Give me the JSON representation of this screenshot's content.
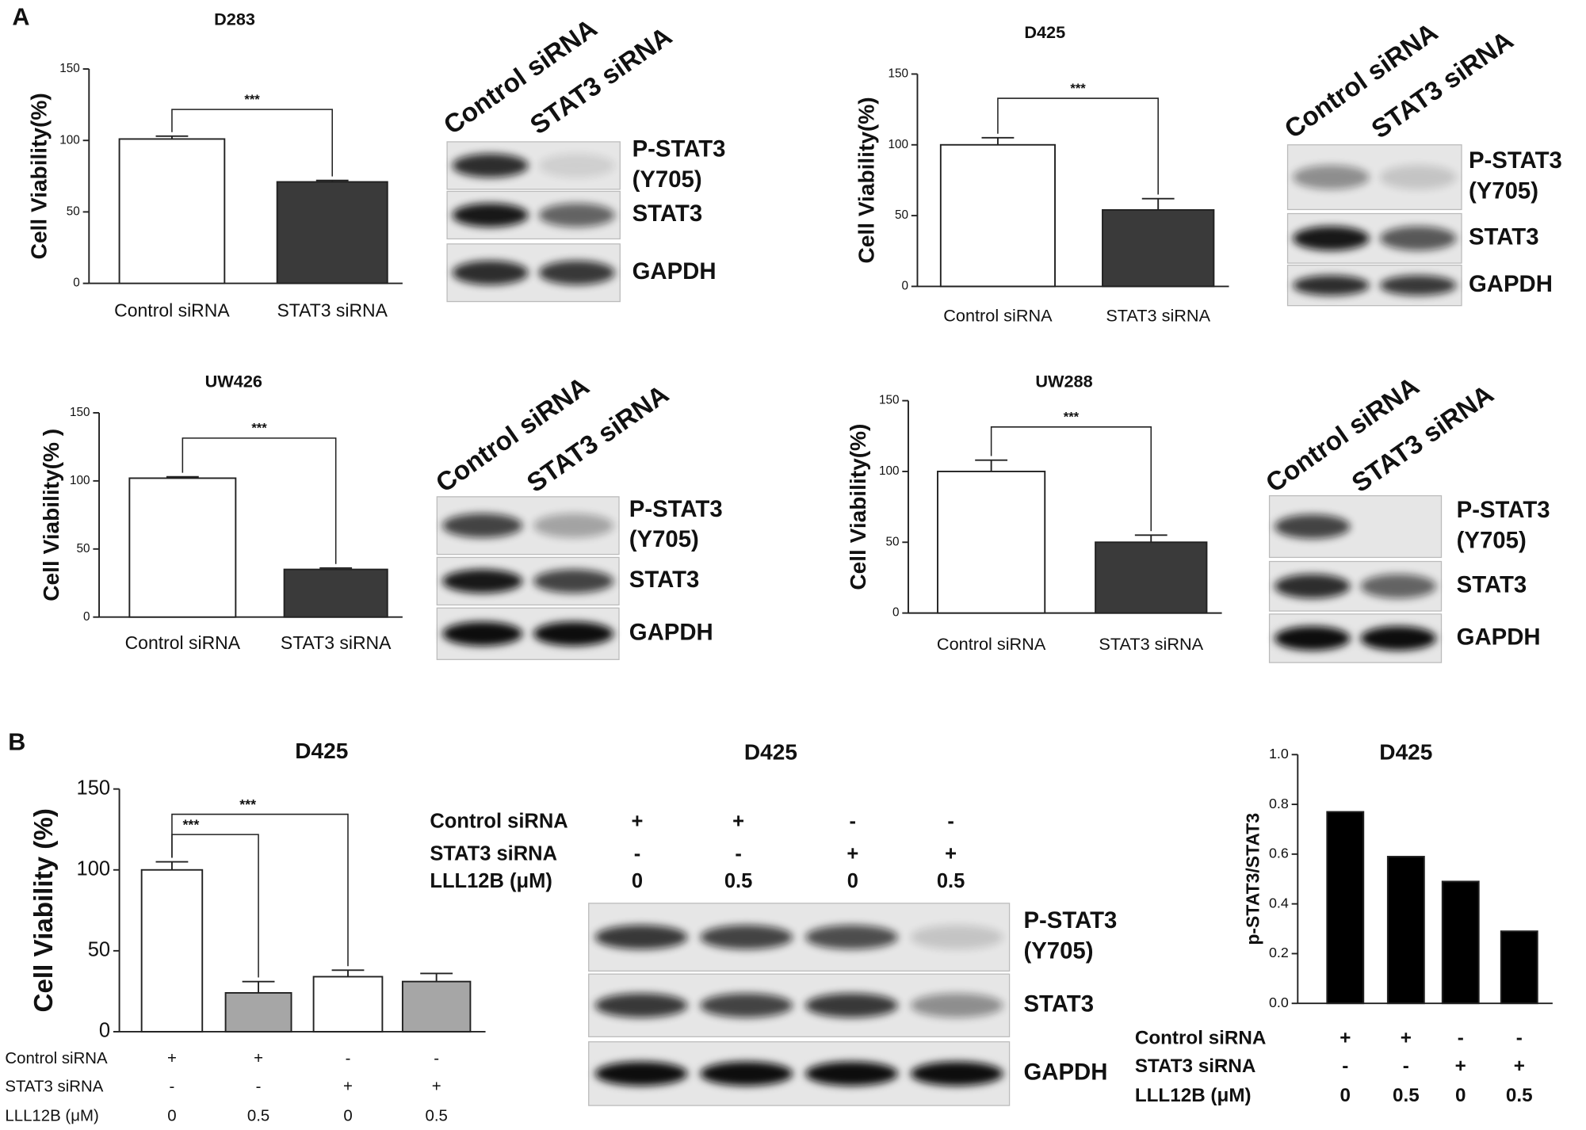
{
  "panel_labels": [
    "A",
    "B"
  ],
  "chart_data": [
    {
      "type": "bar",
      "title": "D283",
      "ylabel": "Cell Viability(%)",
      "categories": [
        "Control siRNA",
        "STAT3 siRNA"
      ],
      "values": [
        101,
        71
      ],
      "errors": [
        2,
        1
      ],
      "colors": [
        "#ffffff",
        "#3a3a3a"
      ],
      "ylim": [
        0,
        150
      ],
      "yticks": [
        0,
        50,
        100,
        150
      ],
      "comparisons": [
        {
          "label": "***",
          "bars": [
            0,
            1
          ]
        }
      ]
    },
    {
      "type": "bar",
      "title": "D425",
      "ylabel": "Cell Viability(%)",
      "categories": [
        "Control siRNA",
        "STAT3 siRNA"
      ],
      "values": [
        100,
        54
      ],
      "errors": [
        5,
        8
      ],
      "colors": [
        "#ffffff",
        "#3a3a3a"
      ],
      "ylim": [
        0,
        150
      ],
      "yticks": [
        0,
        50,
        100,
        150
      ],
      "comparisons": [
        {
          "label": "***",
          "bars": [
            0,
            1
          ]
        }
      ]
    },
    {
      "type": "bar",
      "title": "UW426",
      "ylabel": "Cell Viability(% )",
      "categories": [
        "Control siRNA",
        "STAT3 siRNA"
      ],
      "values": [
        102,
        35
      ],
      "errors": [
        1,
        1
      ],
      "colors": [
        "#ffffff",
        "#3a3a3a"
      ],
      "ylim": [
        0,
        150
      ],
      "yticks": [
        0,
        50,
        100,
        150
      ],
      "comparisons": [
        {
          "label": "***",
          "bars": [
            0,
            1
          ]
        }
      ]
    },
    {
      "type": "bar",
      "title": "UW288",
      "ylabel": "Cell Viability(%)",
      "categories": [
        "Control siRNA",
        "STAT3 siRNA"
      ],
      "values": [
        100,
        50
      ],
      "errors": [
        8,
        5
      ],
      "colors": [
        "#ffffff",
        "#3a3a3a"
      ],
      "ylim": [
        0,
        150
      ],
      "yticks": [
        0,
        50,
        100,
        150
      ],
      "comparisons": [
        {
          "label": "***",
          "bars": [
            0,
            1
          ]
        }
      ]
    },
    {
      "type": "bar",
      "title": "D425",
      "ylabel": "Cell Viability (%)",
      "values": [
        100,
        24,
        34,
        31
      ],
      "errors": [
        5,
        7,
        4,
        5
      ],
      "colors": [
        "#ffffff",
        "#a6a6a6",
        "#ffffff",
        "#a6a6a6"
      ],
      "ylim": [
        0,
        150
      ],
      "yticks": [
        0,
        50,
        100,
        150
      ],
      "comparisons": [
        {
          "label": "***",
          "bars": [
            0,
            1
          ]
        },
        {
          "label": "***",
          "bars": [
            0,
            2
          ]
        }
      ],
      "conditions": [
        {
          "name": "Control siRNA",
          "values": [
            "+",
            "+",
            "-",
            "-"
          ]
        },
        {
          "name": "STAT3 siRNA",
          "values": [
            "-",
            "-",
            "+",
            "+"
          ]
        },
        {
          "name": "LLL12B (μM)",
          "values": [
            "0",
            "0.5",
            "0",
            "0.5"
          ]
        }
      ]
    },
    {
      "type": "bar",
      "title": "D425",
      "ylabel": "p-STAT3/STAT3",
      "values": [
        0.77,
        0.59,
        0.49,
        0.29
      ],
      "colors": [
        "#000000",
        "#000000",
        "#000000",
        "#000000"
      ],
      "ylim": [
        0,
        1
      ],
      "yticks": [
        {
          "value": 0,
          "label": "0.0"
        },
        0.2,
        0.4,
        0.6,
        0.8,
        {
          "value": 1,
          "label": "1.0"
        }
      ],
      "conditions": [
        {
          "name": "Control siRNA",
          "values": [
            "+",
            "+",
            "-",
            "-"
          ]
        },
        {
          "name": "STAT3 siRNA",
          "values": [
            "-",
            "-",
            "+",
            "+"
          ]
        },
        {
          "name": "LLL12B (μM)",
          "values": [
            "0",
            "0.5",
            "0",
            "0.5"
          ]
        }
      ]
    }
  ],
  "blots": [
    {
      "lanes": [
        "Control siRNA",
        "STAT3 siRNA"
      ],
      "rows": [
        [
          "P-STAT3",
          "(Y705)"
        ],
        [
          "STAT3"
        ],
        [
          "GAPDH"
        ]
      ]
    },
    {
      "lanes": [
        "Control siRNA",
        "STAT3 siRNA"
      ],
      "rows": [
        [
          "P-STAT3",
          "(Y705)"
        ],
        [
          "STAT3"
        ],
        [
          "GAPDH"
        ]
      ]
    },
    {
      "lanes": [
        "Control siRNA",
        "STAT3 siRNA"
      ],
      "rows": [
        [
          "P-STAT3",
          "(Y705)"
        ],
        [
          "STAT3"
        ],
        [
          "GAPDH"
        ]
      ]
    },
    {
      "lanes": [
        "Control siRNA",
        "STAT3 siRNA"
      ],
      "rows": [
        [
          "P-STAT3",
          "(Y705)"
        ],
        [
          "STAT3"
        ],
        [
          "GAPDH"
        ]
      ]
    },
    {
      "title": "D425",
      "conditions": [
        {
          "name": "Control siRNA",
          "values": [
            "+",
            "+",
            "-",
            "-"
          ]
        },
        {
          "name": "STAT3 siRNA",
          "values": [
            "-",
            "-",
            "+",
            "+"
          ]
        },
        {
          "name": "LLL12B (μM)",
          "values": [
            "0",
            "0.5",
            "0",
            "0.5"
          ]
        }
      ],
      "rows": [
        [
          "P-STAT3",
          "(Y705)"
        ],
        [
          "STAT3"
        ],
        [
          "GAPDH"
        ]
      ]
    }
  ]
}
